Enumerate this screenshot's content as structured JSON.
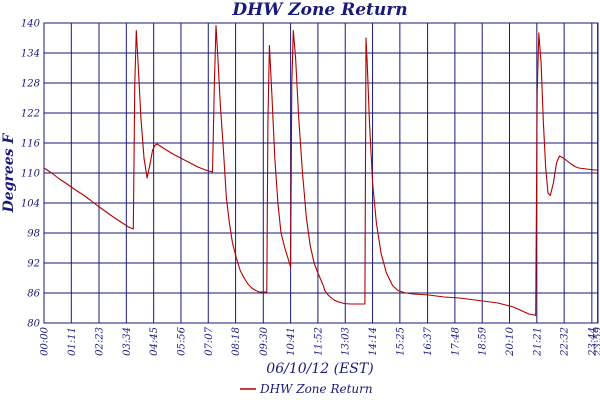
{
  "chart_data": {
    "type": "line",
    "title": "DHW Zone Return",
    "xlabel": "06/10/12 (EST)",
    "ylabel": "Degrees F",
    "ylim": [
      80,
      140
    ],
    "xlim": [
      0,
      1440
    ],
    "grid": true,
    "legend_position": "bottom",
    "yticks": [
      80,
      86,
      92,
      98,
      104,
      110,
      116,
      122,
      128,
      134,
      140
    ],
    "xtick_labels": [
      "00:00",
      "01:11",
      "02:23",
      "03:34",
      "04:45",
      "05:56",
      "07:07",
      "08:18",
      "09:30",
      "10:41",
      "11:52",
      "13:03",
      "14:14",
      "15:25",
      "16:37",
      "17:48",
      "18:59",
      "20:10",
      "21:21",
      "22:32",
      "23:44",
      "23:59"
    ],
    "xtick_minutes": [
      0,
      71,
      143,
      214,
      285,
      356,
      427,
      498,
      570,
      641,
      712,
      783,
      854,
      925,
      997,
      1068,
      1139,
      1210,
      1281,
      1352,
      1424,
      1439
    ],
    "series": [
      {
        "name": "DHW Zone Return",
        "color": "#b00000",
        "x": [
          0,
          20,
          40,
          60,
          80,
          100,
          120,
          140,
          160,
          180,
          200,
          220,
          232,
          236,
          240,
          246,
          252,
          260,
          268,
          276,
          282,
          288,
          294,
          300,
          310,
          320,
          340,
          360,
          380,
          400,
          420,
          438,
          443,
          447,
          452,
          458,
          466,
          474,
          482,
          490,
          500,
          510,
          520,
          530,
          540,
          550,
          560,
          570,
          579,
          582,
          586,
          592,
          600,
          608,
          616,
          626,
          634,
          641,
          644,
          648,
          654,
          662,
          672,
          682,
          692,
          702,
          712,
          726,
          730,
          736,
          744,
          754,
          766,
          780,
          796,
          812,
          826,
          834,
          837,
          840,
          846,
          854,
          864,
          876,
          890,
          906,
          920,
          940,
          960,
          980,
          1000,
          1020,
          1040,
          1060,
          1080,
          1100,
          1120,
          1140,
          1160,
          1180,
          1200,
          1220,
          1240,
          1260,
          1275,
          1278,
          1282,
          1286,
          1292,
          1298,
          1304,
          1310,
          1316,
          1324,
          1332,
          1340,
          1350,
          1360,
          1370,
          1380,
          1390,
          1400,
          1410,
          1420,
          1430,
          1439
        ],
        "y": [
          111,
          110,
          108.8,
          107.8,
          106.7,
          105.7,
          104.6,
          103.4,
          102.3,
          101.2,
          100.2,
          99.2,
          98.8,
          128,
          138.5,
          130,
          121,
          113,
          109,
          112,
          114.5,
          115.5,
          115.8,
          115.5,
          115,
          114.5,
          113.6,
          112.8,
          112,
          111.2,
          110.6,
          110.2,
          128,
          139.5,
          133,
          124,
          115,
          105,
          100,
          96,
          93,
          90.5,
          89,
          87.8,
          87,
          86.5,
          86.2,
          86.2,
          86.2,
          120,
          135.5,
          126,
          113,
          104,
          98,
          95,
          93,
          91.2,
          128,
          138.5,
          133,
          121,
          110,
          101,
          95.5,
          92,
          90,
          87.5,
          86.5,
          85.8,
          85.2,
          84.6,
          84.2,
          83.9,
          83.8,
          83.8,
          83.8,
          83.8,
          137,
          132,
          120,
          108,
          100,
          94,
          90,
          87.5,
          86.5,
          86,
          85.8,
          85.7,
          85.6,
          85.4,
          85.2,
          85.1,
          85,
          84.8,
          84.6,
          84.4,
          84.2,
          84,
          83.6,
          83.2,
          82.5,
          81.8,
          81.6,
          81.5,
          126,
          138,
          132,
          120,
          111,
          106,
          105.5,
          108,
          112,
          113.4,
          113,
          112.4,
          111.8,
          111.3,
          111,
          110.9,
          110.8,
          110.7,
          110.6,
          110.6
        ]
      }
    ]
  }
}
